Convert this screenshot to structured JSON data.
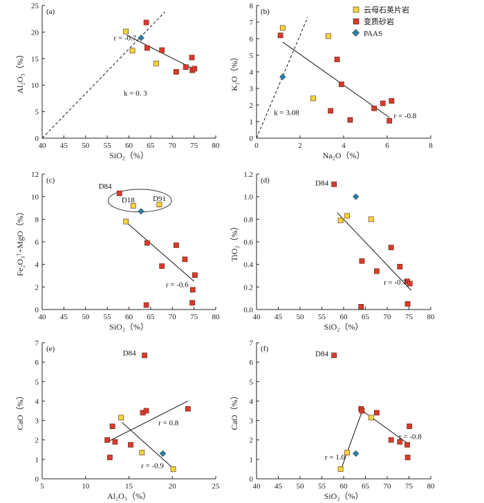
{
  "legend": [
    {
      "key": "yellow",
      "label": "云母石英片岩"
    },
    {
      "key": "red",
      "label": "变质砂岩"
    },
    {
      "key": "blue",
      "label": "PAAS"
    }
  ],
  "colors": {
    "yellow": "#f5d33a",
    "red": "#d93a2b",
    "blue": "#2f7fa3",
    "axis": "#222222",
    "line": "#111111"
  },
  "chart_data": [
    {
      "id": "a",
      "type": "scatter",
      "panel_label": "(a)",
      "xlabel": "SiO₂（%）",
      "ylabel": "Al₂O₃（%）",
      "xlim": [
        40,
        80
      ],
      "ylim": [
        0,
        25
      ],
      "xticks": [
        40,
        45,
        50,
        55,
        60,
        65,
        70,
        75,
        80
      ],
      "yticks": [
        0,
        5,
        10,
        15,
        20,
        25
      ],
      "series": [
        {
          "name": "云母石英片岩",
          "key": "yellow",
          "points": [
            [
              59.3,
              20.1
            ],
            [
              60.8,
              16.5
            ],
            [
              66.3,
              14.1
            ]
          ]
        },
        {
          "name": "变质砂岩",
          "key": "red",
          "points": [
            [
              64.0,
              21.8
            ],
            [
              64.2,
              17.0
            ],
            [
              67.6,
              16.6
            ],
            [
              70.9,
              12.5
            ],
            [
              73.1,
              13.4
            ],
            [
              74.5,
              15.2
            ],
            [
              74.6,
              12.8
            ],
            [
              75.1,
              13.1
            ]
          ]
        },
        {
          "name": "PAAS",
          "key": "blue",
          "points": [
            [
              62.8,
              18.9
            ]
          ]
        }
      ],
      "lines": [
        {
          "style": "solid",
          "from": [
            59.5,
            19.4
          ],
          "to": [
            75.5,
            12.8
          ]
        },
        {
          "style": "dashed",
          "from": [
            40.0,
            0.0
          ],
          "to": [
            68.3,
            23.8
          ]
        }
      ],
      "annotations": [
        {
          "text": "r = -0.7",
          "at": [
            56.5,
            18.4
          ]
        },
        {
          "text": "k = 0. 3",
          "at": [
            58.8,
            8.0
          ]
        }
      ]
    },
    {
      "id": "b",
      "type": "scatter",
      "panel_label": "(b)",
      "xlabel": "Na₂O（%）",
      "ylabel": "K₂O（%）",
      "xlim": [
        0,
        8
      ],
      "ylim": [
        0,
        8
      ],
      "xticks": [
        0,
        2,
        4,
        6,
        8
      ],
      "yticks": [
        0,
        1,
        2,
        3,
        4,
        5,
        6,
        7,
        8
      ],
      "series": [
        {
          "name": "云母石英片岩",
          "key": "yellow",
          "points": [
            [
              1.2,
              6.65
            ],
            [
              3.3,
              6.15
            ],
            [
              2.6,
              2.4
            ]
          ]
        },
        {
          "name": "变质砂岩",
          "key": "red",
          "points": [
            [
              1.1,
              6.2
            ],
            [
              3.7,
              4.75
            ],
            [
              3.9,
              3.25
            ],
            [
              3.4,
              1.65
            ],
            [
              4.3,
              1.1
            ],
            [
              5.4,
              1.8
            ],
            [
              5.8,
              2.1
            ],
            [
              6.2,
              2.25
            ],
            [
              6.1,
              1.05
            ]
          ]
        },
        {
          "name": "PAAS",
          "key": "blue",
          "points": [
            [
              1.2,
              3.7
            ]
          ]
        }
      ],
      "lines": [
        {
          "style": "solid",
          "from": [
            1.2,
            5.8
          ],
          "to": [
            6.1,
            1.25
          ]
        },
        {
          "style": "dashed",
          "from": [
            0.0,
            0.0
          ],
          "to": [
            2.35,
            7.3
          ]
        }
      ],
      "annotations": [
        {
          "text": "r = -0.8",
          "at": [
            6.3,
            1.2
          ]
        },
        {
          "text": "k = 3.08",
          "at": [
            0.8,
            1.4
          ]
        }
      ]
    },
    {
      "id": "c",
      "type": "scatter",
      "panel_label": "(c)",
      "xlabel": "SiO₂（%）",
      "ylabel": "Fe₂O₃ᵀ+MgO（%）",
      "xlim": [
        40,
        80
      ],
      "ylim": [
        0,
        12
      ],
      "xticks": [
        40,
        45,
        50,
        55,
        60,
        65,
        70,
        75,
        80
      ],
      "yticks": [
        0,
        2,
        4,
        6,
        8,
        10,
        12
      ],
      "series": [
        {
          "name": "云母石英片岩",
          "key": "yellow",
          "points": [
            [
              59.3,
              7.8
            ],
            [
              61.0,
              9.2
            ],
            [
              67.0,
              9.3
            ]
          ]
        },
        {
          "name": "变质砂岩",
          "key": "red",
          "points": [
            [
              57.8,
              10.3
            ],
            [
              64.2,
              5.9
            ],
            [
              70.9,
              5.7
            ],
            [
              67.6,
              3.85
            ],
            [
              72.9,
              4.45
            ],
            [
              75.2,
              3.05
            ],
            [
              74.7,
              1.75
            ],
            [
              74.6,
              0.6
            ],
            [
              64.0,
              0.4
            ]
          ]
        },
        {
          "name": "PAAS",
          "key": "blue",
          "points": [
            [
              62.8,
              8.7
            ]
          ]
        }
      ],
      "lines": [
        {
          "style": "solid",
          "from": [
            59.5,
            7.7
          ],
          "to": [
            75.0,
            2.5
          ]
        }
      ],
      "annotations": [
        {
          "text": "r = -0.6",
          "at": [
            68.5,
            2.0
          ]
        }
      ],
      "point_labels": [
        {
          "text": "D84",
          "at": [
            53.0,
            10.7
          ]
        },
        {
          "text": "D18",
          "at": [
            58.3,
            9.5
          ]
        },
        {
          "text": "D91",
          "at": [
            65.5,
            9.6
          ]
        }
      ],
      "ellipse": {
        "center": [
          62.5,
          9.65
        ],
        "radius": [
          7.3,
          1.0
        ]
      }
    },
    {
      "id": "d",
      "type": "scatter",
      "panel_label": "(d)",
      "xlabel": "SiO₂（%）",
      "ylabel": "TiO₂（%）",
      "xlim": [
        40,
        80
      ],
      "ylim": [
        0,
        1.2
      ],
      "xticks": [
        40,
        45,
        50,
        55,
        60,
        65,
        70,
        75,
        80
      ],
      "yticks": [
        0.0,
        0.2,
        0.4,
        0.6,
        0.8,
        1.0,
        1.2
      ],
      "series": [
        {
          "name": "云母石英片岩",
          "key": "yellow",
          "points": [
            [
              59.3,
              0.79
            ],
            [
              60.8,
              0.83
            ],
            [
              66.3,
              0.8
            ]
          ]
        },
        {
          "name": "变质砂岩",
          "key": "red",
          "points": [
            [
              57.8,
              1.11
            ],
            [
              70.9,
              0.55
            ],
            [
              64.2,
              0.43
            ],
            [
              67.6,
              0.34
            ],
            [
              72.9,
              0.38
            ],
            [
              74.6,
              0.25
            ],
            [
              75.2,
              0.23
            ],
            [
              74.7,
              0.05
            ],
            [
              64.0,
              0.025
            ]
          ]
        },
        {
          "name": "PAAS",
          "key": "blue",
          "points": [
            [
              62.8,
              1.0
            ]
          ]
        }
      ],
      "lines": [
        {
          "style": "solid",
          "from": [
            58.5,
            0.86
          ],
          "to": [
            75.5,
            0.17
          ]
        }
      ],
      "annotations": [
        {
          "text": "r = -0.7",
          "at": [
            69.2,
            0.22
          ]
        }
      ],
      "point_labels": [
        {
          "text": "D84",
          "at": [
            53.5,
            1.1
          ]
        }
      ]
    },
    {
      "id": "e",
      "type": "scatter",
      "panel_label": "(e)",
      "xlabel": "Al₂O₃（%）",
      "ylabel": "CaO（%）",
      "xlim": [
        5,
        25
      ],
      "ylim": [
        0,
        7
      ],
      "xticks": [
        5,
        10,
        15,
        20,
        25
      ],
      "yticks": [
        0,
        1,
        2,
        3,
        4,
        5,
        6,
        7
      ],
      "series": [
        {
          "name": "云母石英片岩",
          "key": "yellow",
          "points": [
            [
              14.1,
              3.15
            ],
            [
              16.5,
              1.35
            ],
            [
              20.1,
              0.5
            ]
          ]
        },
        {
          "name": "变质砂岩",
          "key": "red",
          "points": [
            [
              16.8,
              6.35
            ],
            [
              12.5,
              2.0
            ],
            [
              12.8,
              1.1
            ],
            [
              13.1,
              2.7
            ],
            [
              13.4,
              1.9
            ],
            [
              15.2,
              1.75
            ],
            [
              16.6,
              3.4
            ],
            [
              17.0,
              3.5
            ],
            [
              21.8,
              3.6
            ]
          ]
        },
        {
          "name": "PAAS",
          "key": "blue",
          "points": [
            [
              18.9,
              1.3
            ]
          ]
        }
      ],
      "lines": [
        {
          "style": "solid",
          "from": [
            12.3,
            1.85
          ],
          "to": [
            21.8,
            4.0
          ]
        },
        {
          "style": "solid",
          "from": [
            14.2,
            2.9
          ],
          "to": [
            20.2,
            0.5
          ]
        }
      ],
      "annotations": [
        {
          "text": "r = 0.8",
          "at": [
            18.4,
            2.75
          ]
        },
        {
          "text": "r = -0.9",
          "at": [
            16.4,
            0.55
          ]
        }
      ],
      "point_labels": [
        {
          "text": "D84",
          "at": [
            14.3,
            6.35
          ]
        }
      ]
    },
    {
      "id": "f",
      "type": "scatter",
      "panel_label": "(f)",
      "xlabel": "SiO₂（%）",
      "ylabel": "CaO（%）",
      "xlim": [
        40,
        80
      ],
      "ylim": [
        0,
        7
      ],
      "xticks": [
        40,
        45,
        50,
        55,
        60,
        65,
        70,
        75,
        80
      ],
      "yticks": [
        0,
        1,
        2,
        3,
        4,
        5,
        6,
        7
      ],
      "series": [
        {
          "name": "云母石英片岩",
          "key": "yellow",
          "points": [
            [
              59.3,
              0.5
            ],
            [
              60.8,
              1.35
            ],
            [
              66.3,
              3.15
            ]
          ]
        },
        {
          "name": "变质砂岩",
          "key": "red",
          "points": [
            [
              57.8,
              6.35
            ],
            [
              64.0,
              3.6
            ],
            [
              64.2,
              3.5
            ],
            [
              67.6,
              3.4
            ],
            [
              70.9,
              2.0
            ],
            [
              72.9,
              1.9
            ],
            [
              75.1,
              2.7
            ],
            [
              74.6,
              1.75
            ],
            [
              74.7,
              1.1
            ]
          ]
        },
        {
          "name": "PAAS",
          "key": "blue",
          "points": [
            [
              62.8,
              1.3
            ]
          ]
        }
      ],
      "lines": [
        {
          "style": "solid",
          "from": [
            59.5,
            0.55
          ],
          "to": [
            64.2,
            3.45
          ]
        },
        {
          "style": "solid",
          "from": [
            64.0,
            3.55
          ],
          "to": [
            75.1,
            1.75
          ]
        }
      ],
      "annotations": [
        {
          "text": "r = 1.0",
          "at": [
            55.7,
            1.0
          ]
        },
        {
          "text": "r = -0.8",
          "at": [
            72.7,
            2.05
          ]
        }
      ],
      "point_labels": [
        {
          "text": "D84",
          "at": [
            53.5,
            6.3
          ]
        }
      ]
    }
  ]
}
